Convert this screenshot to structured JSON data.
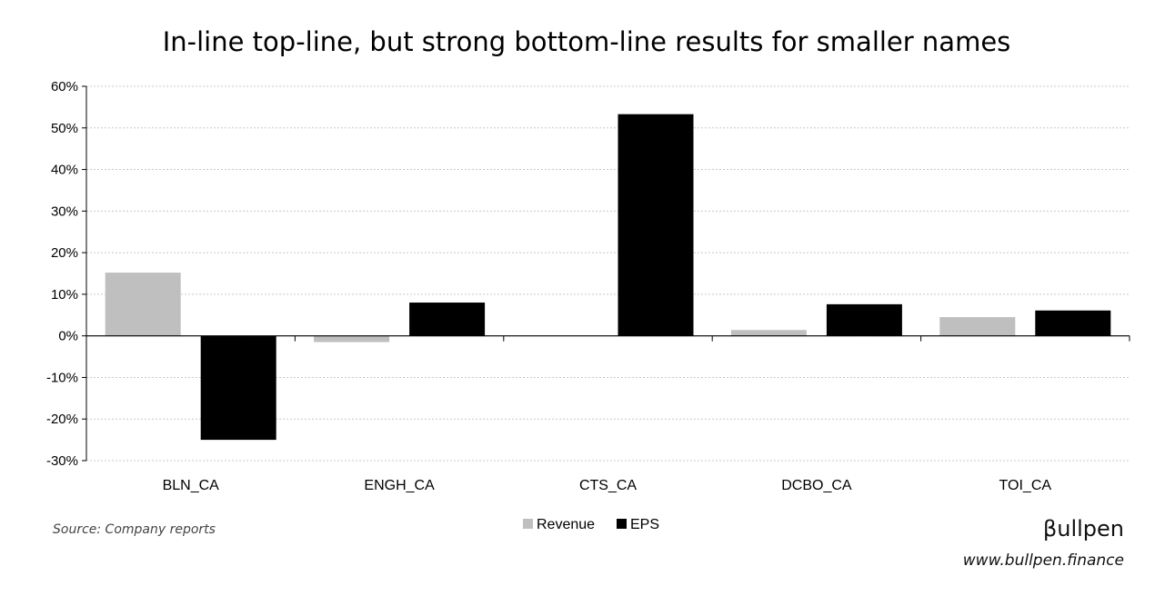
{
  "chart_data": {
    "type": "bar",
    "title": "In-line top-line, but strong bottom-line results for smaller names",
    "categories": [
      "BLN_CA",
      "ENGH_CA",
      "CTS_CA",
      "DCBO_CA",
      "TOI_CA"
    ],
    "series": [
      {
        "name": "Revenue",
        "color": "#bfbfbf",
        "values": [
          15.2,
          -1.5,
          0,
          1.4,
          4.5
        ]
      },
      {
        "name": "EPS",
        "color": "#000000",
        "values": [
          -25,
          8,
          53.3,
          7.6,
          6.1
        ]
      }
    ],
    "ylim": [
      -30,
      60
    ],
    "yticks": [
      "60%",
      "50%",
      "40%",
      "30%",
      "20%",
      "10%",
      "0%",
      "-10%",
      "-20%",
      "-30%"
    ],
    "grid": true,
    "legend_position": "bottom-center"
  },
  "footer": {
    "source": "Source: Company reports",
    "brand": "βullpen",
    "url": "www.bullpen.finance"
  }
}
